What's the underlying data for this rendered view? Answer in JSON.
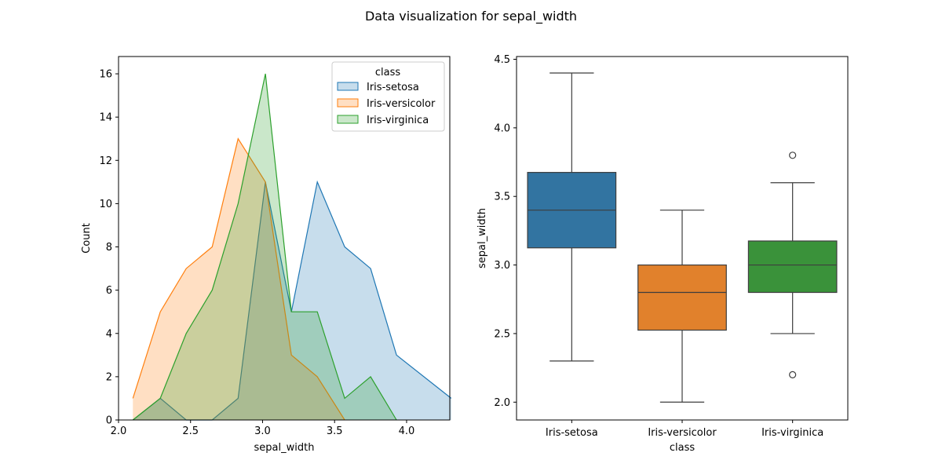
{
  "figure": {
    "suptitle": "Data visualization for sepal_width"
  },
  "colors": {
    "setosa": "#1f77b4",
    "versicolor": "#ff7f0e",
    "virginica": "#2ca02c",
    "box_setosa": "#3274a1",
    "box_versicolor": "#e1812c",
    "box_virginica": "#3a923a",
    "box_line": "#3d3d3d"
  },
  "chart_data": [
    {
      "type": "area",
      "kind": "histogram-polygon (element=poly, overlapping, semi-transparent fill)",
      "xlabel": "sepal_width",
      "ylabel": "Count",
      "xlim": [
        2.0,
        4.3
      ],
      "ylim": [
        0,
        16.8
      ],
      "x_ticks": [
        "2.0",
        "2.5",
        "3.0",
        "3.5",
        "4.0"
      ],
      "y_ticks": [
        "0",
        "2",
        "4",
        "6",
        "8",
        "10",
        "12",
        "14",
        "16"
      ],
      "legend": {
        "title": "class",
        "placement": "top-right"
      },
      "series": [
        {
          "name": "Iris-setosa",
          "x": [
            2.1,
            2.29,
            2.47,
            2.65,
            2.83,
            3.02,
            3.2,
            3.38,
            3.57,
            3.75,
            3.93,
            4.31
          ],
          "values": [
            0,
            1,
            0,
            0,
            1,
            11,
            5,
            11,
            8,
            7,
            3,
            1
          ]
        },
        {
          "name": "Iris-versicolor",
          "x": [
            2.1,
            2.29,
            2.47,
            2.65,
            2.83,
            3.02,
            3.2,
            3.38,
            3.57
          ],
          "values": [
            1,
            5,
            7,
            8,
            13,
            11,
            3,
            2,
            0
          ]
        },
        {
          "name": "Iris-virginica",
          "x": [
            2.1,
            2.29,
            2.47,
            2.65,
            2.83,
            3.02,
            3.2,
            3.38,
            3.57,
            3.75,
            3.93
          ],
          "values": [
            0,
            1,
            4,
            6,
            10,
            16,
            5,
            5,
            1,
            2,
            0
          ]
        }
      ]
    },
    {
      "type": "box",
      "xlabel": "class",
      "ylabel": "sepal_width",
      "ylim": [
        1.87,
        4.52
      ],
      "y_ticks": [
        "2.0",
        "2.5",
        "3.0",
        "3.5",
        "4.0",
        "4.5"
      ],
      "categories": [
        "Iris-setosa",
        "Iris-versicolor",
        "Iris-virginica"
      ],
      "boxes": [
        {
          "q1": 3.125,
          "median": 3.4,
          "q3": 3.675,
          "whisker_low": 2.3,
          "whisker_high": 4.4,
          "outliers": []
        },
        {
          "q1": 2.525,
          "median": 2.8,
          "q3": 3.0,
          "whisker_low": 2.0,
          "whisker_high": 3.4,
          "outliers": []
        },
        {
          "q1": 2.8,
          "median": 3.0,
          "q3": 3.175,
          "whisker_low": 2.5,
          "whisker_high": 3.6,
          "outliers": [
            3.8,
            2.2
          ]
        }
      ]
    }
  ]
}
